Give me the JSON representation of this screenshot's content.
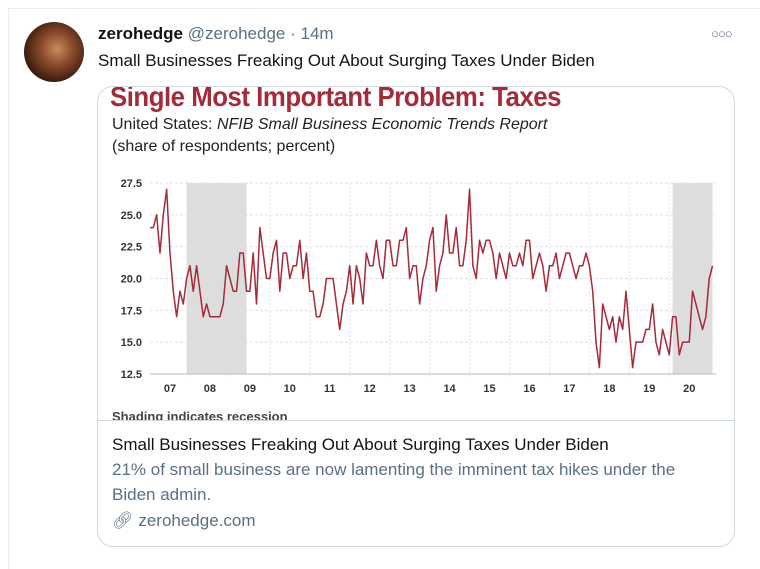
{
  "tweet": {
    "display_name": "zerohedge",
    "handle": "@zerohedge",
    "separator": "·",
    "time": "14m",
    "text": "Small Businesses Freaking Out About Surging Taxes Under Biden",
    "more_icon": "more-horizontal-icon"
  },
  "card": {
    "title": "Small Businesses Freaking Out About Surging Taxes Under Biden",
    "description": "21% of small business are now lamenting the imminent tax hikes under the Biden admin.",
    "domain": "zerohedge.com",
    "link_icon": "link-icon"
  },
  "chart_data": {
    "type": "line",
    "title": "Single Most Important Problem: Taxes",
    "subtitle_prefix": "United States: ",
    "subtitle_source": "NFIB Small Business Economic Trends Report",
    "unit_note": "(share of respondents; percent)",
    "footnote": "Shading indicates recession",
    "line_color": "#a52a3a",
    "shade_color": "#dddddd",
    "ylim": [
      12.5,
      27.5
    ],
    "yticks": [
      "27.5",
      "25.0",
      "22.5",
      "20.0",
      "17.5",
      "15.0",
      "12.5"
    ],
    "xticks": [
      "07",
      "08",
      "09",
      "10",
      "11",
      "12",
      "13",
      "14",
      "15",
      "16",
      "17",
      "18",
      "19",
      "20"
    ],
    "grid": true,
    "recessions": [
      [
        "2007-12",
        "2009-06"
      ],
      [
        "2020-02",
        "2021-02"
      ]
    ],
    "monthly_values_by_year": {
      "2007": [
        24,
        24,
        25,
        22,
        25,
        27,
        22,
        19,
        17,
        19,
        18,
        20
      ],
      "2008": [
        21,
        19,
        21,
        19,
        17,
        18,
        17,
        17,
        17,
        17,
        18,
        21
      ],
      "2009": [
        20,
        19,
        19,
        22,
        22,
        19,
        19,
        22,
        18,
        24,
        22,
        20
      ],
      "2010": [
        20,
        22,
        23,
        19,
        22,
        22,
        20,
        21,
        21,
        23,
        20,
        22
      ],
      "2011": [
        19,
        19,
        17,
        17,
        18,
        20,
        20,
        20,
        18,
        16,
        18,
        19
      ],
      "2012": [
        21,
        18,
        21,
        20,
        18,
        22,
        21,
        21,
        23,
        21,
        20,
        23
      ],
      "2013": [
        23,
        21,
        21,
        23,
        23,
        24,
        20,
        21,
        21,
        18,
        20,
        21
      ],
      "2014": [
        23,
        24,
        19,
        21,
        22,
        25,
        22,
        22,
        24,
        21,
        21,
        23
      ],
      "2015": [
        27,
        21,
        20,
        23,
        22,
        23,
        23,
        22,
        20,
        22,
        21,
        20
      ],
      "2016": [
        22,
        21,
        21,
        22,
        21,
        23,
        23,
        20,
        21,
        22,
        21,
        19
      ],
      "2017": [
        21,
        21,
        22,
        20,
        21,
        22,
        22,
        21,
        20,
        21,
        21,
        22
      ],
      "2018": [
        21,
        19,
        15,
        13,
        18,
        17,
        16,
        17,
        15,
        17,
        16,
        19
      ],
      "2019": [
        16,
        13,
        15,
        15,
        15,
        16,
        16,
        18,
        15,
        14,
        16,
        15
      ],
      "2020": [
        14,
        17,
        17,
        14,
        15,
        15,
        15,
        19,
        18,
        17,
        16,
        17
      ],
      "2021": [
        20,
        21
      ]
    }
  }
}
